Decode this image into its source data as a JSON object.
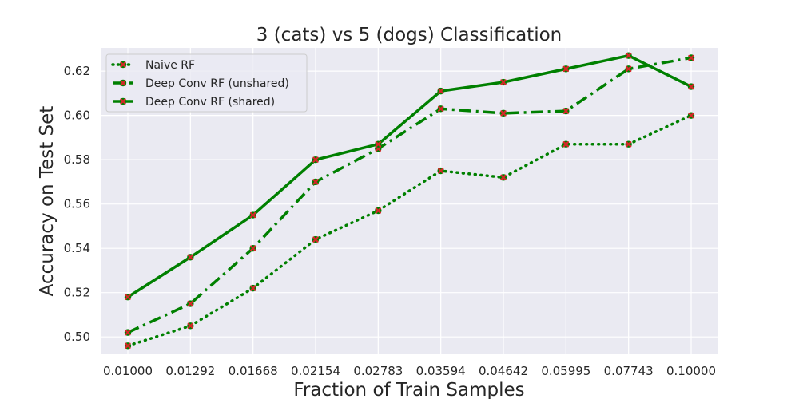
{
  "chart_data": {
    "type": "line",
    "title": "3 (cats) vs 5 (dogs) Classification",
    "xlabel": "Fraction of Train Samples",
    "ylabel": "Accuracy on Test Set",
    "categories": [
      "0.01000",
      "0.01292",
      "0.01668",
      "0.02154",
      "0.02783",
      "0.03594",
      "0.04642",
      "0.05995",
      "0.07743",
      "0.10000"
    ],
    "yticks": [
      "0.50",
      "0.52",
      "0.54",
      "0.56",
      "0.58",
      "0.60",
      "0.62"
    ],
    "ylim": [
      0.4925,
      0.6305
    ],
    "grid": true,
    "legend_position": "top-left",
    "series": [
      {
        "name": "Naive RF",
        "style": "dotted",
        "values": [
          0.496,
          0.505,
          0.522,
          0.544,
          0.557,
          0.575,
          0.572,
          0.587,
          0.587,
          0.6
        ]
      },
      {
        "name": "Deep Conv RF (unshared)",
        "style": "dashdot",
        "values": [
          0.502,
          0.515,
          0.54,
          0.57,
          0.585,
          0.603,
          0.601,
          0.602,
          0.621,
          0.626
        ]
      },
      {
        "name": "Deep Conv RF (shared)",
        "style": "solid",
        "values": [
          0.518,
          0.536,
          0.555,
          0.58,
          0.587,
          0.611,
          0.615,
          0.621,
          0.627,
          0.613
        ]
      }
    ],
    "colors": {
      "line": "#008000",
      "marker": "#d62728",
      "plot_bg": "#eaeaf2",
      "grid": "#ffffff"
    }
  }
}
